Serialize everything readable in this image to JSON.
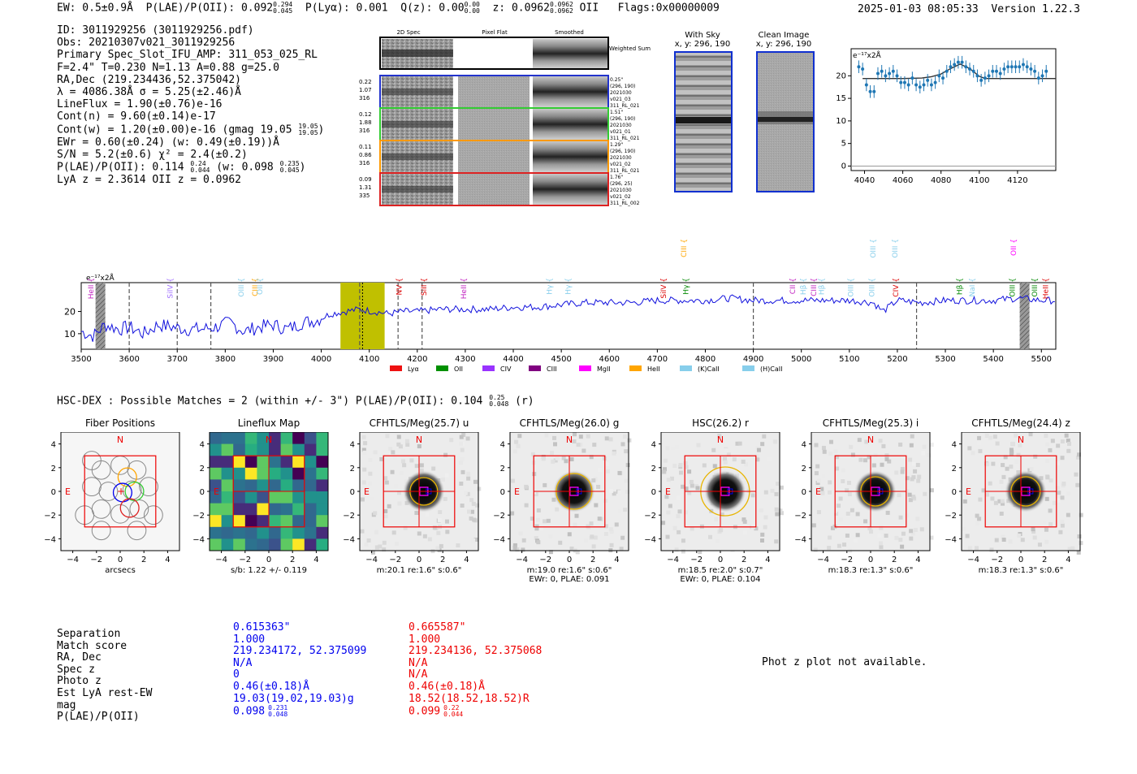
{
  "header": {
    "ew": "EW: 0.5±0.9Å",
    "plae_label": "P(LAE)/P(OII): 0.092",
    "plae_up": "0.294",
    "plae_lo": "0.045",
    "plya": "P(Lyα): 0.001",
    "qz_label": "Q(z): 0.00",
    "qz_up": "0.00",
    "qz_lo": "0.00",
    "z_label": "z: 0.0962",
    "z_up": "0.0962",
    "z_lo": "0.0962",
    "z_line": "OII",
    "flags": "Flags:0x00000009",
    "datetime": "2025-01-03 08:05:33",
    "version": "Version 1.22.3"
  },
  "info": {
    "id": "ID: 3011929256 (3011929256.pdf)",
    "obs": "Obs: 20210307v021_3011929256",
    "primary": "Primary Spec_Slot_IFU_AMP: 311_053_025_RL",
    "fparams": "F=2.4\"  T=0.230  N=1.13  A=0.88  g=25.0",
    "radec": "RA,Dec (219.234436,52.375042)",
    "lambda": "λ = 4086.38Å  σ = 5.25(±2.46)Å",
    "lineflux": "LineFlux = 1.90(±0.76)e-16",
    "contn": "Cont(n) = 9.60(±0.14)e-17",
    "contw": "Cont(w) = 1.20(±0.00)e-16 (gmag 19.05",
    "contw_up": "19.05",
    "contw_lo": "19.05",
    "contw_end": ")",
    "ewr": "EWr = 0.60(±0.24) (w: 0.49(±0.19))Å",
    "sn": "S/N = 5.2(±0.6)  χ² = 2.4(±0.2)",
    "plae": "P(LAE)/P(OII): 0.114",
    "plae_up": "0.24",
    "plae_lo": "0.044",
    "plae_w": "(w: 0.098",
    "plae_w_up": "0.235",
    "plae_w_lo": "0.045",
    "plae_w_end": ")",
    "lyaz": "LyA z = 2.3614  OII z = 0.0962"
  },
  "cutouts": {
    "col_titles": [
      "2D Spec",
      "Pixel Flat",
      "Smoothed"
    ],
    "weighted_label": "Weighted Sum",
    "rows": [
      {
        "stats": [
          "0.22",
          "1.07",
          "316"
        ],
        "right": [
          "0.25\"",
          "(296, 190)",
          "2021030",
          "v021_03",
          "311_RL_021"
        ],
        "color": "#2233cc"
      },
      {
        "stats": [
          "0.12",
          "1.88",
          "316"
        ],
        "right": [
          "1.51\"",
          "(296, 190)",
          "2021030",
          "v021_01",
          "311_RL_021"
        ],
        "color": "#33cc33"
      },
      {
        "stats": [
          "0.11",
          "0.86",
          "316"
        ],
        "right": [
          "1.29\"",
          "(296, 190)",
          "2021030",
          "v021_02",
          "311_RL_021"
        ],
        "color": "#ff9900"
      },
      {
        "stats": [
          "0.09",
          "1.31",
          "335"
        ],
        "right": [
          "1.76\"",
          "(296, 25)",
          "2021030",
          "v021_02",
          "311_RL_002"
        ],
        "color": "#dd2222"
      }
    ]
  },
  "sky": {
    "with_sky_title": "With Sky",
    "with_sky_xy": "x, y: 296, 190",
    "clean_title": "Clean Image",
    "clean_xy": "x, y: 296, 190"
  },
  "zoom_chart": {
    "unit": "e⁻¹⁷x2Å",
    "chart_data": {
      "type": "scatter",
      "x_ticks": [
        4040,
        4060,
        4080,
        4100,
        4120
      ],
      "y_ticks": [
        0,
        5,
        10,
        15,
        20
      ],
      "xlim": [
        4033,
        4140
      ],
      "ylim": [
        -1,
        26
      ],
      "points_x": [
        4037,
        4039,
        4041,
        4043,
        4045,
        4047,
        4049,
        4051,
        4053,
        4055,
        4057,
        4059,
        4061,
        4063,
        4065,
        4067,
        4069,
        4071,
        4073,
        4075,
        4077,
        4079,
        4081,
        4083,
        4085,
        4087,
        4089,
        4091,
        4093,
        4095,
        4097,
        4099,
        4101,
        4103,
        4105,
        4107,
        4109,
        4111,
        4113,
        4115,
        4117,
        4119,
        4121,
        4123,
        4125,
        4127,
        4129,
        4131,
        4133,
        4135
      ],
      "points_y": [
        22,
        21.5,
        18,
        16.5,
        16.5,
        20.5,
        21,
        20,
        20.5,
        21,
        20,
        18.5,
        18.5,
        18,
        19.5,
        18,
        17.5,
        18,
        19,
        18,
        18.5,
        20,
        19.5,
        21,
        22,
        22.5,
        23,
        23,
        22,
        21.5,
        21,
        20,
        19,
        19.5,
        20,
        21,
        21,
        20.5,
        21.5,
        22,
        22,
        22,
        22,
        22.5,
        22,
        21.5,
        21,
        19.5,
        20,
        21
      ],
      "model_x": [
        4039,
        4060,
        4070,
        4075,
        4080,
        4085,
        4090,
        4095,
        4100,
        4103,
        4140
      ],
      "model_y": [
        19.4,
        19.4,
        19.5,
        19.8,
        20.4,
        21.6,
        22.6,
        21.6,
        19.9,
        19.4,
        19.4
      ]
    }
  },
  "spectrum": {
    "unit": "e⁻¹⁷x2Å",
    "chart_data": {
      "type": "line",
      "xlim": [
        3500,
        5530
      ],
      "ylim": [
        3,
        33
      ],
      "x_ticks": [
        3500,
        3600,
        3700,
        3800,
        3900,
        4000,
        4100,
        4200,
        4300,
        4400,
        4500,
        4600,
        4700,
        4800,
        4900,
        5000,
        5100,
        5200,
        5300,
        5400,
        5500
      ],
      "y_ticks": [
        10,
        20
      ],
      "control_x": [
        3500,
        3525,
        3550,
        3580,
        3600,
        3630,
        3660,
        3690,
        3720,
        3750,
        3780,
        3810,
        3840,
        3870,
        3900,
        3930,
        3960,
        3990,
        4020,
        4050,
        4080,
        4110,
        4140,
        4170,
        4200,
        4250,
        4300,
        4350,
        4400,
        4450,
        4500,
        4550,
        4600,
        4650,
        4700,
        4750,
        4800,
        4850,
        4900,
        4950,
        5000,
        5050,
        5100,
        5150,
        5170,
        5200,
        5250,
        5300,
        5350,
        5400,
        5450,
        5500,
        5530
      ],
      "control_y": [
        11,
        9,
        14,
        12,
        13,
        10,
        14,
        13,
        12,
        12,
        13,
        15,
        11,
        13,
        14,
        12,
        15,
        16,
        19,
        20,
        21,
        20,
        19,
        20,
        20,
        21,
        21,
        21,
        22,
        22,
        23,
        24,
        24,
        24,
        25,
        25,
        25,
        26,
        25,
        25,
        25,
        25,
        25,
        24,
        20,
        25,
        24,
        25,
        25,
        25,
        26,
        25,
        25
      ],
      "dashed_x": [
        3600,
        3700,
        3770,
        4080,
        4160,
        4210,
        4900,
        5240
      ],
      "hatched_x": [
        3540,
        5465
      ],
      "highlight_x": [
        4040,
        4132
      ],
      "center_x": 4086
    },
    "lines": [
      {
        "label": "HeII",
        "x": 3521,
        "color": "#c020c0",
        "up": false
      },
      {
        "label": "SiIV",
        "x": 3686,
        "color": "#a070ff",
        "up": false
      },
      {
        "label": "OIII",
        "x": 3834,
        "color": "#87ceeb",
        "up": false
      },
      {
        "label": "CIII",
        "x": 3863,
        "color": "#ffa500",
        "up": false
      },
      {
        "label": "OII",
        "x": 3873,
        "color": "#87ceeb",
        "up": false
      },
      {
        "label": "NV",
        "x": 4163,
        "color": "#dd0000",
        "up": false
      },
      {
        "label": "SiII",
        "x": 4215,
        "color": "#dd0000",
        "up": false
      },
      {
        "label": "HeII",
        "x": 4298,
        "color": "#c020c0",
        "up": false
      },
      {
        "label": "Hγ",
        "x": 4476,
        "color": "#87ceeb",
        "up": false
      },
      {
        "label": "Hγ",
        "x": 4515,
        "color": "#87ceeb",
        "up": false
      },
      {
        "label": "SiIV",
        "x": 4714,
        "color": "#dd0000",
        "up": false
      },
      {
        "label": "CIII",
        "x": 4756,
        "color": "#ffa500",
        "up": true
      },
      {
        "label": "Hγ",
        "x": 4760,
        "color": "#008800",
        "up": false
      },
      {
        "label": "CII",
        "x": 4983,
        "color": "#c020c0",
        "up": false
      },
      {
        "label": "Hβ",
        "x": 5005,
        "color": "#87ceeb",
        "up": false
      },
      {
        "label": "CIII",
        "x": 5027,
        "color": "#c020c0",
        "up": false
      },
      {
        "label": "Hβ",
        "x": 5043,
        "color": "#87ceeb",
        "up": false
      },
      {
        "label": "OIII",
        "x": 5104,
        "color": "#87ceeb",
        "up": false
      },
      {
        "label": "OIII",
        "x": 5148,
        "color": "#87ceeb",
        "up": false
      },
      {
        "label": "OIII",
        "x": 5150,
        "color": "#87ceeb",
        "up": true
      },
      {
        "label": "OIII",
        "x": 5196,
        "color": "#87ceeb",
        "up": true
      },
      {
        "label": "CIV",
        "x": 5198,
        "color": "#dd0000",
        "up": false
      },
      {
        "label": "Hβ",
        "x": 5330,
        "color": "#008800",
        "up": false
      },
      {
        "label": "NaI",
        "x": 5357,
        "color": "#87ceeb",
        "up": false
      },
      {
        "label": "OIII",
        "x": 5440,
        "color": "#008800",
        "up": false
      },
      {
        "label": "OII",
        "x": 5443,
        "color": "#ff00ff",
        "up": true
      },
      {
        "label": "OIII",
        "x": 5487,
        "color": "#008800",
        "up": false
      },
      {
        "label": "HeII",
        "x": 5510,
        "color": "#dd0000",
        "up": false
      }
    ],
    "legend": [
      {
        "label": "Lyα",
        "color": "#ee1111"
      },
      {
        "label": "OII",
        "color": "#009000"
      },
      {
        "label": "CIV",
        "color": "#9933ff"
      },
      {
        "label": "CIII",
        "color": "#800080"
      },
      {
        "label": "MgII",
        "color": "#ff00ff"
      },
      {
        "label": "HeII",
        "color": "#ffa500"
      },
      {
        "label": "(K)CaII",
        "color": "#87ceeb"
      },
      {
        "label": "(H)CaII",
        "color": "#87ceeb"
      }
    ]
  },
  "hsc": {
    "title": "HSC-DEX : Possible Matches = 2 (within +/- 3\")  P(LAE)/P(OII): 0.104",
    "up": "0.25",
    "lo": "0.048",
    "band": "(r)"
  },
  "panels": [
    {
      "title": "Fiber Positions",
      "xlabel": "arcsecs",
      "cap2": "",
      "kind": "fiber"
    },
    {
      "title": "Lineflux Map",
      "xlabel": "s/b: 1.22 +/- 0.119",
      "cap2": "",
      "kind": "flux"
    },
    {
      "title": "CFHTLS/Meg(25.7) u",
      "xlabel": "m:20.1  re:1.6\"  s:0.6\"",
      "cap2": "",
      "kind": "img",
      "ellipse": 17
    },
    {
      "title": "CFHTLS/Meg(26.0) g",
      "xlabel": "m:19.0  re:1.6\"  s:0.6\"",
      "cap2": "EWr: 0, PLAE: 0.091",
      "kind": "img",
      "ellipse": 22
    },
    {
      "title": "HSC(26.2) r",
      "xlabel": "m:18.5  re:2.0\"  s:0.7\"",
      "cap2": "EWr: 0, PLAE: 0.104",
      "kind": "img",
      "ellipse": 30
    },
    {
      "title": "CFHTLS/Meg(25.3) i",
      "xlabel": "m:18.3  re:1.3\"  s:0.6\"",
      "cap2": "",
      "kind": "img",
      "ellipse": 18
    },
    {
      "title": "CFHTLS/Meg(24.4) z",
      "xlabel": "m:18.3  re:1.3\"  s:0.6\"",
      "cap2": "",
      "kind": "img",
      "ellipse": 18
    }
  ],
  "axis": {
    "ticks": [
      "−4",
      "−2",
      "0",
      "2",
      "4"
    ],
    "n": "N",
    "e": "E"
  },
  "matches": {
    "labels": [
      "Separation",
      "Match score",
      "RA, Dec",
      "Spec z",
      "Photo z",
      "Est LyA rest-EW",
      "mag",
      "P(LAE)/P(OII)"
    ],
    "blue": [
      "0.615363\"",
      "1.000",
      "219.234172, 52.375099",
      "N/A",
      "0",
      "0.46(±0.18)Å",
      "19.03(19.02,19.03)g",
      "0.098"
    ],
    "blue_up": "0.231",
    "blue_lo": "0.048",
    "red": [
      "0.665587\"",
      "1.000",
      "219.234136, 52.375068",
      "N/A",
      "N/A",
      "0.46(±0.18)Å",
      "18.52(18.52,18.52)R",
      "0.099"
    ],
    "red_up": "0.22",
    "red_lo": "0.044",
    "photz_msg": "Phot z plot not available."
  },
  "colors": {
    "blue": "#0000ee",
    "red": "#ee0000",
    "spec": "#1111dd",
    "olive": "#c0c000",
    "marker": "#1f77b4"
  }
}
